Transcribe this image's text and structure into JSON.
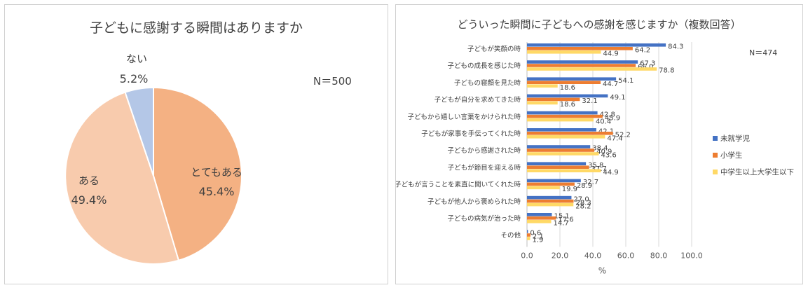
{
  "left_chart": {
    "title": "子どもに感謝する瞬間はありますか",
    "n_label": "N＝500",
    "slices": [
      {
        "label": "とてもある",
        "value": 45.4,
        "value_label": "45.4%",
        "color": "#f4b183"
      },
      {
        "label": "ある",
        "value": 49.4,
        "value_label": "49.4%",
        "color": "#f8cbad"
      },
      {
        "label": "ない",
        "value": 5.2,
        "value_label": "5.2%",
        "color": "#b4c7e7"
      }
    ]
  },
  "right_chart": {
    "title": "どういった瞬間に子どもへの感謝を感じますか（複数回答）",
    "n_label": "N＝474",
    "xlabel": "%",
    "xlim": [
      0,
      100
    ],
    "xticks": [
      "0.0",
      "20.0",
      "40.0",
      "60.0",
      "80.0",
      "100.0"
    ],
    "categories": [
      "子どもが笑顔の時",
      "子どもの成長を感じた時",
      "子どもの寝顔を見た時",
      "子どもが自分を求めてきた時",
      "子どもから嬉しい言葉をかけられた時",
      "子どもが家事を手伝ってくれた時",
      "子どもから感謝された時",
      "子どもが節目を迎える時",
      "子どもが言うことを素直に聞いてくれた時",
      "子どもが他人から褒められた時",
      "子どもの病気が治った時",
      "その他"
    ],
    "series": [
      {
        "name": "未就学児",
        "color": "#4472c4",
        "values": [
          84.3,
          67.3,
          54.1,
          49.1,
          42.8,
          42.1,
          38.4,
          35.8,
          32.7,
          27.0,
          15.1,
          0.6
        ]
      },
      {
        "name": "小学生",
        "color": "#ed7d31",
        "values": [
          64.2,
          66.0,
          44.7,
          32.1,
          45.9,
          52.2,
          40.9,
          37.7,
          28.9,
          28.3,
          17.6,
          2.1
        ]
      },
      {
        "name": "中学生以上大学生以下",
        "color": "#ffd966",
        "values": [
          44.9,
          78.8,
          18.6,
          18.6,
          40.4,
          47.4,
          43.6,
          44.9,
          19.9,
          28.2,
          14.7,
          1.9
        ]
      }
    ]
  },
  "chart_data": [
    {
      "type": "pie",
      "title": "子どもに感謝する瞬間はありますか",
      "annotation": "N＝500",
      "labels": [
        "とてもある",
        "ある",
        "ない"
      ],
      "values": [
        45.4,
        49.4,
        5.2
      ]
    },
    {
      "type": "bar",
      "orientation": "horizontal",
      "title": "どういった瞬間に子どもへの感謝を感じますか（複数回答）",
      "annotation": "N＝474",
      "xlabel": "%",
      "xlim": [
        0,
        100
      ],
      "legend": "right",
      "grid": true
    }
  ]
}
